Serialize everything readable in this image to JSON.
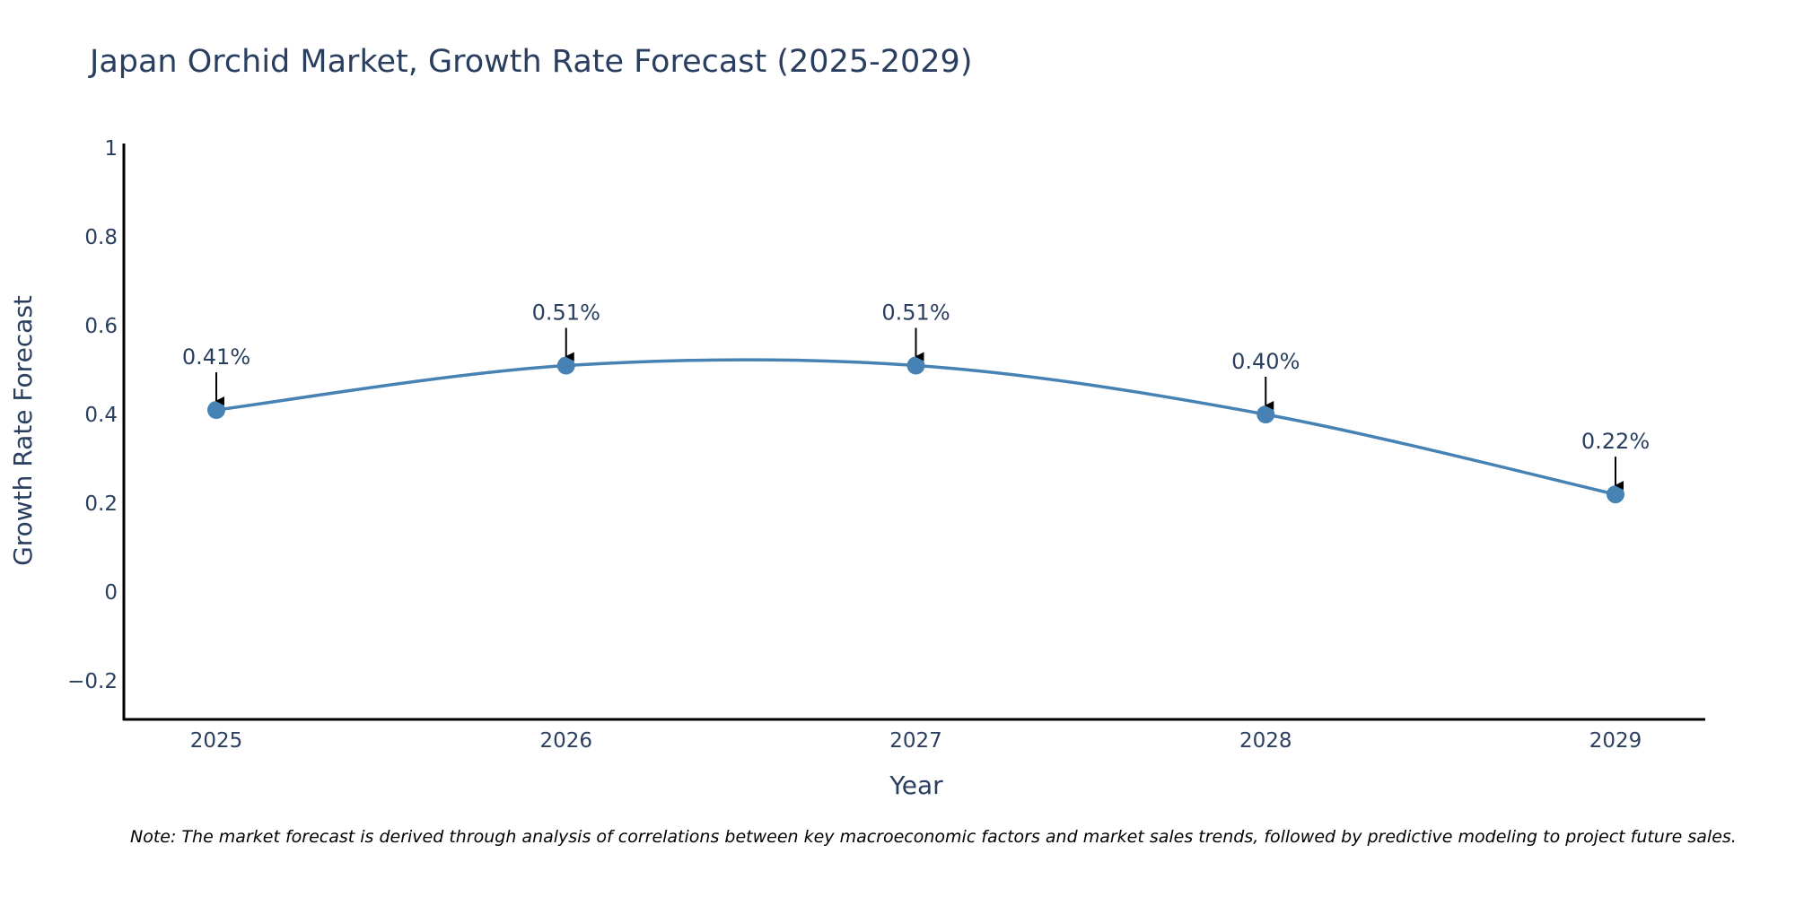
{
  "chart_data": {
    "type": "line",
    "title": "Japan Orchid Market, Growth Rate Forecast (2025-2029)",
    "xlabel": "Year",
    "ylabel": "Growth Rate Forecast",
    "x": [
      "2025",
      "2026",
      "2027",
      "2028",
      "2029"
    ],
    "series": [
      {
        "name": "Growth Rate Forecast",
        "values": [
          0.41,
          0.51,
          0.51,
          0.4,
          0.22
        ],
        "labels": [
          "0.41%",
          "0.51%",
          "0.51%",
          "0.40%",
          "0.22%"
        ]
      }
    ],
    "ylim": [
      -0.28,
      1.0
    ],
    "yticks": [
      -0.2,
      0,
      0.2,
      0.4,
      0.6,
      0.8,
      1
    ],
    "ytick_labels": [
      "−0.2",
      "0",
      "0.2",
      "0.4",
      "0.6",
      "0.8",
      "1"
    ],
    "grid": false,
    "line_shape": "spline",
    "colors": {
      "line": "#4682b4",
      "text": "#2a3f5f",
      "axis": "#000000",
      "arrow": "#000000"
    },
    "note": "Note: The market forecast is derived through analysis of correlations between key macroeconomic factors and market sales trends, followed by predictive modeling to project future sales."
  }
}
